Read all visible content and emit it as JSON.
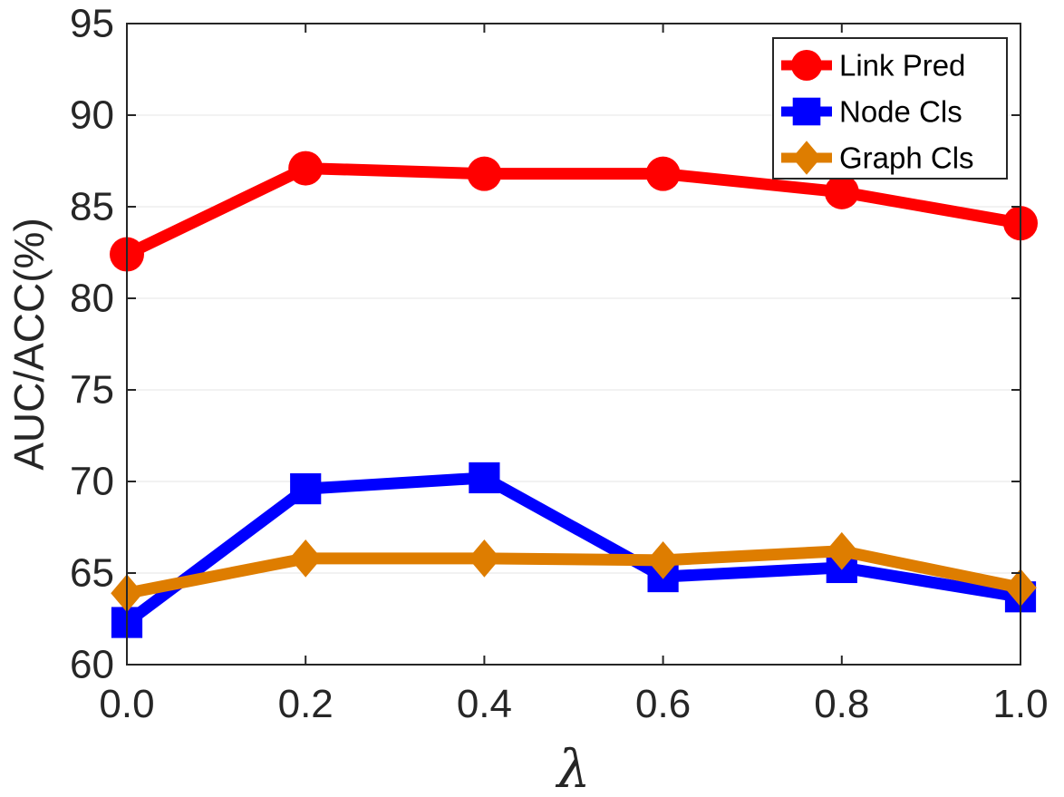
{
  "chart_data": {
    "type": "line",
    "title": "",
    "xlabel": "λ",
    "ylabel": "AUC/ACC(%)",
    "x": [
      0.0,
      0.2,
      0.4,
      0.6,
      0.8,
      1.0
    ],
    "x_tick_labels": [
      "0.0",
      "0.2",
      "0.4",
      "0.6",
      "0.8",
      "1.0"
    ],
    "y_tick_labels": [
      "60",
      "65",
      "70",
      "75",
      "80",
      "85",
      "90",
      "95"
    ],
    "xlim": [
      0,
      1
    ],
    "ylim": [
      60,
      95
    ],
    "grid": "horizontal",
    "legend_position": "top-right",
    "series": [
      {
        "name": "Link Pred",
        "color": "#ff0000",
        "marker": "circle",
        "values": [
          82.4,
          87.1,
          86.8,
          86.8,
          85.8,
          84.1
        ]
      },
      {
        "name": "Node Cls",
        "color": "#0000ff",
        "marker": "square",
        "values": [
          62.3,
          69.6,
          70.2,
          64.8,
          65.3,
          63.7
        ]
      },
      {
        "name": "Graph Cls",
        "color": "#de7d00",
        "marker": "diamond",
        "values": [
          63.9,
          65.8,
          65.8,
          65.7,
          66.2,
          64.2
        ]
      }
    ]
  }
}
